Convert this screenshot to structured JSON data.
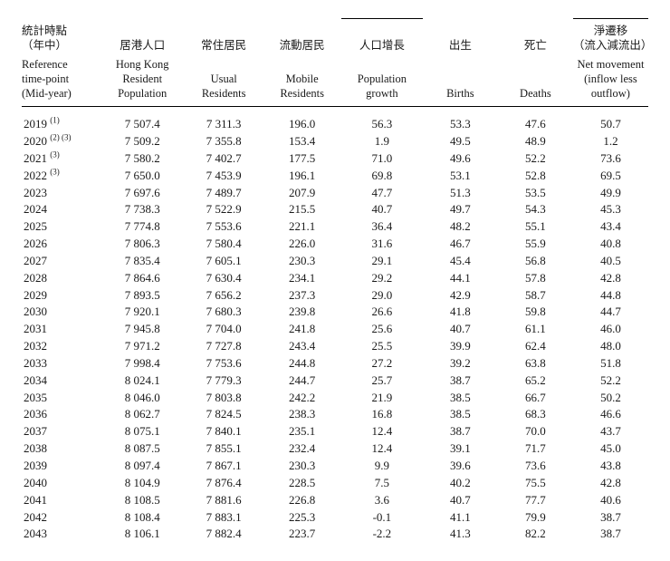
{
  "table": {
    "columns": [
      {
        "key": "year",
        "zh": "統計時點\n（年中）",
        "en": "Reference\ntime-point\n(Mid-year)",
        "align": "left"
      },
      {
        "key": "pop",
        "zh": "居港人口",
        "en": "Hong Kong\nResident\nPopulation",
        "align": "center"
      },
      {
        "key": "usual",
        "zh": "常住居民",
        "en": "Usual\nResidents",
        "align": "center"
      },
      {
        "key": "mobile",
        "zh": "流動居民",
        "en": "Mobile\nResidents",
        "align": "center"
      },
      {
        "key": "growth",
        "zh": "人口增長",
        "en": "Population\ngrowth",
        "align": "center"
      },
      {
        "key": "births",
        "zh": "出生",
        "en": "Births",
        "align": "center"
      },
      {
        "key": "deaths",
        "zh": "死亡",
        "en": "Deaths",
        "align": "center"
      },
      {
        "key": "net",
        "zh": "淨遷移\n（流入減流出）",
        "en": "Net movement\n(inflow less\noutflow)",
        "align": "center"
      }
    ],
    "rows": [
      {
        "year": "2019",
        "sup": "(1)",
        "pop": "7 507.4",
        "usual": "7 311.3",
        "mobile": "196.0",
        "growth": "56.3",
        "births": "53.3",
        "deaths": "47.6",
        "net": "50.7"
      },
      {
        "year": "2020",
        "sup": "(2) (3)",
        "pop": "7 509.2",
        "usual": "7 355.8",
        "mobile": "153.4",
        "growth": "1.9",
        "births": "49.5",
        "deaths": "48.9",
        "net": "1.2"
      },
      {
        "year": "2021",
        "sup": "(3)",
        "pop": "7 580.2",
        "usual": "7 402.7",
        "mobile": "177.5",
        "growth": "71.0",
        "births": "49.6",
        "deaths": "52.2",
        "net": "73.6"
      },
      {
        "year": "2022",
        "sup": "(3)",
        "pop": "7 650.0",
        "usual": "7 453.9",
        "mobile": "196.1",
        "growth": "69.8",
        "births": "53.1",
        "deaths": "52.8",
        "net": "69.5"
      },
      {
        "year": "2023",
        "sup": "",
        "pop": "7 697.6",
        "usual": "7 489.7",
        "mobile": "207.9",
        "growth": "47.7",
        "births": "51.3",
        "deaths": "53.5",
        "net": "49.9"
      },
      {
        "year": "2024",
        "sup": "",
        "pop": "7 738.3",
        "usual": "7 522.9",
        "mobile": "215.5",
        "growth": "40.7",
        "births": "49.7",
        "deaths": "54.3",
        "net": "45.3"
      },
      {
        "year": "2025",
        "sup": "",
        "pop": "7 774.8",
        "usual": "7 553.6",
        "mobile": "221.1",
        "growth": "36.4",
        "births": "48.2",
        "deaths": "55.1",
        "net": "43.4"
      },
      {
        "year": "2026",
        "sup": "",
        "pop": "7 806.3",
        "usual": "7 580.4",
        "mobile": "226.0",
        "growth": "31.6",
        "births": "46.7",
        "deaths": "55.9",
        "net": "40.8"
      },
      {
        "year": "2027",
        "sup": "",
        "pop": "7 835.4",
        "usual": "7 605.1",
        "mobile": "230.3",
        "growth": "29.1",
        "births": "45.4",
        "deaths": "56.8",
        "net": "40.5"
      },
      {
        "year": "2028",
        "sup": "",
        "pop": "7 864.6",
        "usual": "7 630.4",
        "mobile": "234.1",
        "growth": "29.2",
        "births": "44.1",
        "deaths": "57.8",
        "net": "42.8"
      },
      {
        "year": "2029",
        "sup": "",
        "pop": "7 893.5",
        "usual": "7 656.2",
        "mobile": "237.3",
        "growth": "29.0",
        "births": "42.9",
        "deaths": "58.7",
        "net": "44.8"
      },
      {
        "year": "2030",
        "sup": "",
        "pop": "7 920.1",
        "usual": "7 680.3",
        "mobile": "239.8",
        "growth": "26.6",
        "births": "41.8",
        "deaths": "59.8",
        "net": "44.7"
      },
      {
        "year": "2031",
        "sup": "",
        "pop": "7 945.8",
        "usual": "7 704.0",
        "mobile": "241.8",
        "growth": "25.6",
        "births": "40.7",
        "deaths": "61.1",
        "net": "46.0"
      },
      {
        "year": "2032",
        "sup": "",
        "pop": "7 971.2",
        "usual": "7 727.8",
        "mobile": "243.4",
        "growth": "25.5",
        "births": "39.9",
        "deaths": "62.4",
        "net": "48.0"
      },
      {
        "year": "2033",
        "sup": "",
        "pop": "7 998.4",
        "usual": "7 753.6",
        "mobile": "244.8",
        "growth": "27.2",
        "births": "39.2",
        "deaths": "63.8",
        "net": "51.8"
      },
      {
        "year": "2034",
        "sup": "",
        "pop": "8 024.1",
        "usual": "7 779.3",
        "mobile": "244.7",
        "growth": "25.7",
        "births": "38.7",
        "deaths": "65.2",
        "net": "52.2"
      },
      {
        "year": "2035",
        "sup": "",
        "pop": "8 046.0",
        "usual": "7 803.8",
        "mobile": "242.2",
        "growth": "21.9",
        "births": "38.5",
        "deaths": "66.7",
        "net": "50.2"
      },
      {
        "year": "2036",
        "sup": "",
        "pop": "8 062.7",
        "usual": "7 824.5",
        "mobile": "238.3",
        "growth": "16.8",
        "births": "38.5",
        "deaths": "68.3",
        "net": "46.6"
      },
      {
        "year": "2037",
        "sup": "",
        "pop": "8 075.1",
        "usual": "7 840.1",
        "mobile": "235.1",
        "growth": "12.4",
        "births": "38.7",
        "deaths": "70.0",
        "net": "43.7"
      },
      {
        "year": "2038",
        "sup": "",
        "pop": "8 087.5",
        "usual": "7 855.1",
        "mobile": "232.4",
        "growth": "12.4",
        "births": "39.1",
        "deaths": "71.7",
        "net": "45.0"
      },
      {
        "year": "2039",
        "sup": "",
        "pop": "8 097.4",
        "usual": "7 867.1",
        "mobile": "230.3",
        "growth": "9.9",
        "births": "39.6",
        "deaths": "73.6",
        "net": "43.8"
      },
      {
        "year": "2040",
        "sup": "",
        "pop": "8 104.9",
        "usual": "7 876.4",
        "mobile": "228.5",
        "growth": "7.5",
        "births": "40.2",
        "deaths": "75.5",
        "net": "42.8"
      },
      {
        "year": "2041",
        "sup": "",
        "pop": "8 108.5",
        "usual": "7 881.6",
        "mobile": "226.8",
        "growth": "3.6",
        "births": "40.7",
        "deaths": "77.7",
        "net": "40.6"
      },
      {
        "year": "2042",
        "sup": "",
        "pop": "8 108.4",
        "usual": "7 883.1",
        "mobile": "225.3",
        "growth": "-0.1",
        "births": "41.1",
        "deaths": "79.9",
        "net": "38.7"
      },
      {
        "year": "2043",
        "sup": "",
        "pop": "8 106.1",
        "usual": "7 882.4",
        "mobile": "223.7",
        "growth": "-2.2",
        "births": "41.3",
        "deaths": "82.2",
        "net": "38.7"
      }
    ],
    "font_family": "Times New Roman",
    "header_fontsize_pt": 9,
    "body_fontsize_pt": 10,
    "text_color": "#1a1a1a",
    "background_color": "#ffffff",
    "rule_color": "#000000"
  }
}
